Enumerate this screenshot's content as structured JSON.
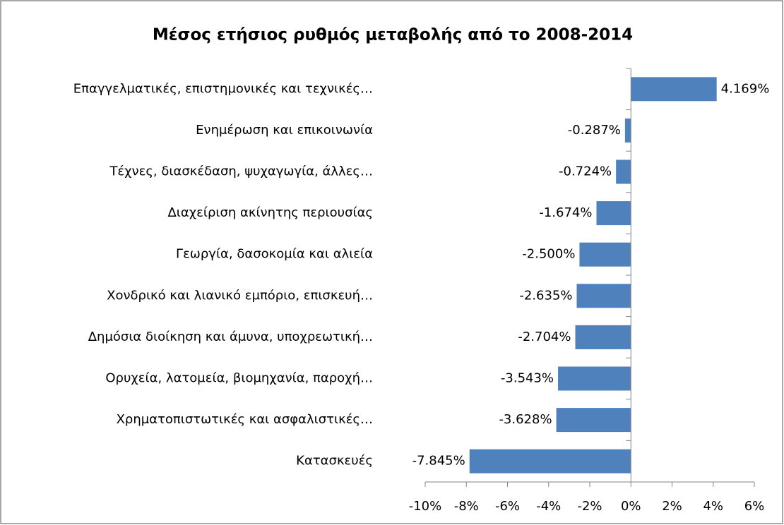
{
  "chart_data": {
    "type": "barh",
    "title": "Μέσος ετήσιος ρυθμός μεταβολής από το 2008-2014",
    "categories": [
      "Επαγγελματικές, επιστημονικές και τεχνικές…",
      "Ενημέρωση και επικοινωνία",
      "Τέχνες, διασκέδαση, ψυχαγωγία, άλλες…",
      "Διαχείριση ακίνητης περιουσίας",
      "Γεωργία, δασοκομία και αλιεία",
      "Χονδρικό και λιανικό εμπόριο, επισκευή…",
      "Δημόσια διοίκηση και άμυνα, υποχρεωτική…",
      "Ορυχεία, λατομεία, βιομηχανία, παροχή…",
      "Χρηματοπιστωτικές και ασφαλιστικές…",
      "Κατασκευές"
    ],
    "values": [
      4.169,
      -0.287,
      -0.724,
      -1.674,
      -2.5,
      -2.635,
      -2.704,
      -3.543,
      -3.628,
      -7.845
    ],
    "value_labels": [
      "4.169%",
      "-0.287%",
      "-0.724%",
      "-1.674%",
      "-2.500%",
      "-2.635%",
      "-2.704%",
      "-3.543%",
      "-3.628%",
      "-7.845%"
    ],
    "color": "#4f81bd",
    "xlim": [
      -10,
      6
    ],
    "xticks": [
      {
        "value": -10,
        "label": "-10%"
      },
      {
        "value": -8,
        "label": "-8%"
      },
      {
        "value": -6,
        "label": "-6%"
      },
      {
        "value": -4,
        "label": "-4%"
      },
      {
        "value": -2,
        "label": "-2%"
      },
      {
        "value": 0,
        "label": "0%"
      },
      {
        "value": 2,
        "label": "2%"
      },
      {
        "value": 4,
        "label": "4%"
      },
      {
        "value": 6,
        "label": "6%"
      }
    ]
  }
}
